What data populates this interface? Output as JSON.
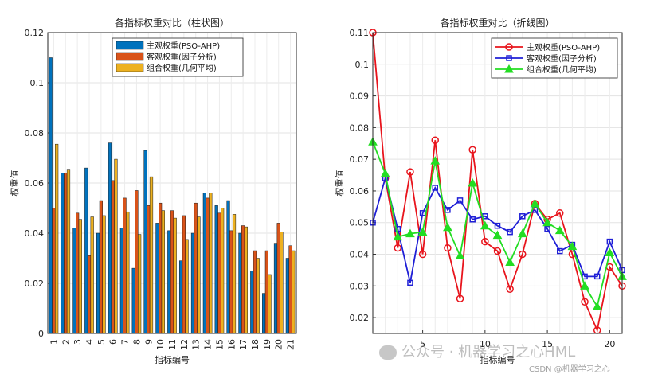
{
  "chart_data": [
    {
      "type": "bar",
      "title": "各指标权重对比（柱状图）",
      "xlabel": "指标编号",
      "ylabel": "权重值",
      "categories": [
        "1",
        "2",
        "3",
        "4",
        "5",
        "6",
        "7",
        "8",
        "9",
        "10",
        "11",
        "12",
        "13",
        "14",
        "15",
        "16",
        "17",
        "18",
        "19",
        "20",
        "21"
      ],
      "ylim": [
        0,
        0.12
      ],
      "yticks": [
        "0",
        "0.02",
        "0.04",
        "0.06",
        "0.08",
        "0.1",
        "0.12"
      ],
      "grid": true,
      "legend_position": "top-right",
      "series": [
        {
          "name": "主观权重(PSO-AHP)",
          "color": "#0072BD",
          "values": [
            0.11,
            0.064,
            0.042,
            0.066,
            0.04,
            0.076,
            0.042,
            0.026,
            0.073,
            0.044,
            0.041,
            0.029,
            0.04,
            0.056,
            0.051,
            0.053,
            0.04,
            0.025,
            0.016,
            0.036,
            0.03
          ]
        },
        {
          "name": "客观权重(因子分析)",
          "color": "#D95319",
          "values": [
            0.05,
            0.064,
            0.048,
            0.031,
            0.053,
            0.061,
            0.054,
            0.057,
            0.051,
            0.052,
            0.049,
            0.047,
            0.052,
            0.054,
            0.048,
            0.041,
            0.043,
            0.033,
            0.033,
            0.044,
            0.035
          ]
        },
        {
          "name": "组合权重(几何平均)",
          "color": "#EDB120",
          "values": [
            0.0755,
            0.0655,
            0.0455,
            0.0465,
            0.047,
            0.0695,
            0.0485,
            0.0395,
            0.0625,
            0.049,
            0.046,
            0.0375,
            0.0465,
            0.056,
            0.05,
            0.0475,
            0.0425,
            0.03,
            0.0235,
            0.0405,
            0.033
          ]
        }
      ]
    },
    {
      "type": "line",
      "title": "各指标权重对比（折线图）",
      "xlabel": "指标编号",
      "ylabel": "权重值",
      "x": [
        1,
        2,
        3,
        4,
        5,
        6,
        7,
        8,
        9,
        10,
        11,
        12,
        13,
        14,
        15,
        16,
        17,
        18,
        19,
        20,
        21
      ],
      "xlim": [
        1,
        21
      ],
      "xticks": [
        "5",
        "10",
        "15",
        "20"
      ],
      "ylim": [
        0.015,
        0.11
      ],
      "yticks": [
        "0.02",
        "0.03",
        "0.04",
        "0.05",
        "0.06",
        "0.07",
        "0.08",
        "0.09",
        "0.1",
        "0.11"
      ],
      "grid": true,
      "legend_position": "top-right",
      "series": [
        {
          "name": "主观权重(PSO-AHP)",
          "color": "#E8141C",
          "marker": "circle",
          "values": [
            0.11,
            0.064,
            0.042,
            0.066,
            0.04,
            0.076,
            0.042,
            0.026,
            0.073,
            0.044,
            0.041,
            0.029,
            0.04,
            0.056,
            0.051,
            0.053,
            0.04,
            0.025,
            0.016,
            0.036,
            0.03
          ]
        },
        {
          "name": "客观权重(因子分析)",
          "color": "#1F1FD6",
          "marker": "square",
          "values": [
            0.05,
            0.064,
            0.048,
            0.031,
            0.053,
            0.061,
            0.054,
            0.057,
            0.051,
            0.052,
            0.049,
            0.047,
            0.052,
            0.054,
            0.048,
            0.041,
            0.043,
            0.033,
            0.033,
            0.044,
            0.035
          ]
        },
        {
          "name": "组合权重(几何平均)",
          "color": "#22DD22",
          "marker": "triangle",
          "values": [
            0.0755,
            0.0655,
            0.0455,
            0.0465,
            0.047,
            0.0695,
            0.0485,
            0.0395,
            0.0625,
            0.049,
            0.046,
            0.0375,
            0.0465,
            0.056,
            0.05,
            0.0475,
            0.0425,
            0.03,
            0.0235,
            0.0405,
            0.033
          ]
        }
      ]
    }
  ],
  "watermark": {
    "wechat": "公众号 · 机器学习之心HML",
    "csdn": "CSDN @机器学习之心"
  }
}
